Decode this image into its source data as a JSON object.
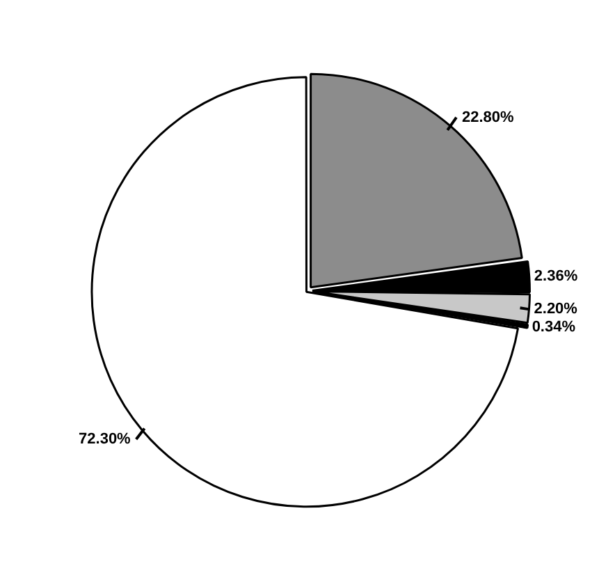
{
  "chart_data": {
    "type": "pie",
    "categories": [
      null,
      null,
      null,
      null,
      null
    ],
    "values": [
      22.8,
      2.36,
      2.2,
      0.34,
      72.3
    ],
    "value_labels": [
      "22.80%",
      "2.36%",
      "2.20%",
      "0.34%",
      "72.30%"
    ],
    "colors": [
      "#8c8c8c",
      "#000000",
      "#c8c8c8",
      "#000000",
      "#ffffff"
    ],
    "legend": false
  }
}
